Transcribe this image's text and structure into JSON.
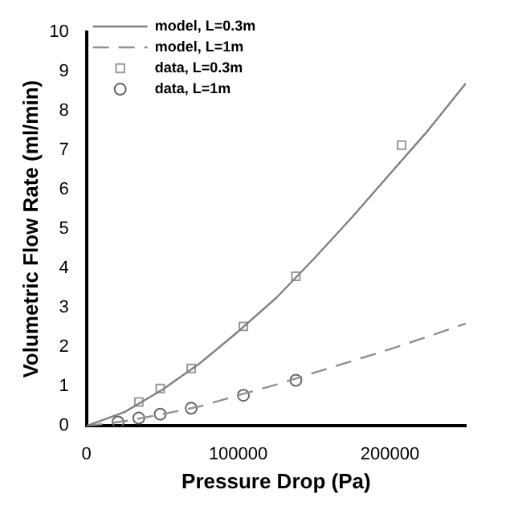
{
  "chart_data": {
    "type": "line",
    "xlabel": "Pressure Drop (Pa)",
    "ylabel": "Volumetric Flow Rate (ml/min)",
    "xlim": [
      0,
      250000
    ],
    "xticks": [
      0,
      100000,
      200000
    ],
    "ylim": [
      0,
      10
    ],
    "yticks": [
      0,
      1,
      2,
      3,
      4,
      5,
      6,
      7,
      8,
      9,
      10
    ],
    "grid": false,
    "legend": "top left",
    "series": [
      {
        "name": "model, L=0.3m",
        "type": "line",
        "color": "#808080",
        "line_style": "solid",
        "marker": "none",
        "x": [
          0,
          25000,
          50000,
          75000,
          100000,
          125000,
          150000,
          175000,
          200000,
          225000,
          250000
        ],
        "values": [
          0,
          0.35,
          0.92,
          1.6,
          2.4,
          3.25,
          4.25,
          5.3,
          6.4,
          7.5,
          8.7
        ]
      },
      {
        "name": "model, L=1m",
        "type": "line",
        "color": "#909090",
        "line_style": "dashed",
        "marker": "none",
        "x": [
          0,
          25000,
          50000,
          75000,
          100000,
          125000,
          150000,
          175000,
          200000,
          225000,
          250000
        ],
        "values": [
          0,
          0.12,
          0.3,
          0.5,
          0.78,
          1.05,
          1.35,
          1.65,
          1.95,
          2.27,
          2.6
        ]
      },
      {
        "name": "data, L=0.3m",
        "type": "scatter",
        "color": "#999999",
        "marker": "square",
        "x": [
          34500,
          48600,
          69000,
          103400,
          138000,
          207700
        ],
        "values": [
          0.61,
          0.95,
          1.46,
          2.53,
          3.8,
          7.13
        ]
      },
      {
        "name": "data, L=1m",
        "type": "scatter",
        "color": "#666666",
        "marker": "circle",
        "x": [
          20800,
          34500,
          48600,
          69000,
          103400,
          138000
        ],
        "values": [
          0.1,
          0.2,
          0.3,
          0.45,
          0.78,
          1.16
        ]
      }
    ]
  }
}
